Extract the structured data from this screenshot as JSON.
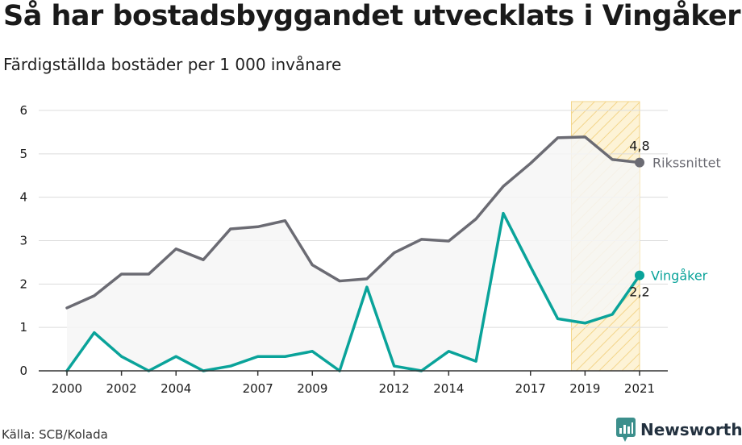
{
  "title": "Så har bostadsbyggandet utvecklats i Vingåker",
  "subtitle": "Färdigställda bostäder per 1 000 invånare",
  "source": "Källa: SCB/Kolada",
  "brand": "Newsworthy",
  "colors": {
    "riket": "#6b6b73",
    "vingaker": "#0aa39a",
    "highlight_fill": "#fdf3d6",
    "highlight_stroke": "#f3d58a",
    "band_fill": "#f6f6f6",
    "grid": "#dcdcdc",
    "brand_icon": "#3c8f8c"
  },
  "chart_data": {
    "type": "line",
    "title": "Så har bostadsbyggandet utvecklats i Vingåker",
    "subtitle": "Färdigställda bostäder per 1 000 invånare",
    "x": [
      2000,
      2001,
      2002,
      2003,
      2004,
      2005,
      2006,
      2007,
      2008,
      2009,
      2010,
      2011,
      2012,
      2013,
      2014,
      2015,
      2016,
      2017,
      2018,
      2019,
      2020,
      2021
    ],
    "x_tick_labels": [
      "2000",
      "2002",
      "2004",
      "2007",
      "2009",
      "2012",
      "2014",
      "2017",
      "2019",
      "2021"
    ],
    "ylim": [
      0,
      6
    ],
    "yticks": [
      0,
      1,
      2,
      3,
      4,
      5,
      6
    ],
    "grid": true,
    "highlight_range": [
      2018.5,
      2021
    ],
    "series": [
      {
        "name": "Rikssnittet",
        "key": "riket",
        "values": [
          1.45,
          1.73,
          2.23,
          2.23,
          2.81,
          2.56,
          3.27,
          3.32,
          3.46,
          2.44,
          2.07,
          2.12,
          2.72,
          3.03,
          2.99,
          3.5,
          4.25,
          4.78,
          5.37,
          5.39,
          4.87,
          4.8
        ],
        "end_value_label": "4,8"
      },
      {
        "name": "Vingåker",
        "key": "vingaker",
        "values": [
          0.0,
          0.88,
          0.33,
          0.0,
          0.33,
          0.0,
          0.11,
          0.33,
          0.33,
          0.45,
          0.0,
          1.93,
          0.11,
          0.0,
          0.45,
          0.22,
          3.63,
          2.4,
          1.2,
          1.1,
          1.3,
          2.2
        ],
        "end_value_label": "2,2"
      }
    ]
  }
}
